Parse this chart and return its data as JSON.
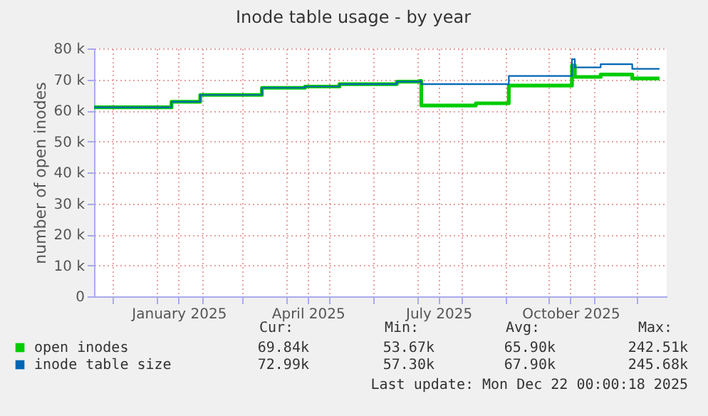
{
  "chart_data": {
    "type": "step",
    "title": "Inode table usage - by year",
    "ylabel": "number of open inodes",
    "xlim": [
      "2024-11-18",
      "2025-12-22"
    ],
    "xticks": [
      {
        "value": "2024-12-01",
        "label": null
      },
      {
        "value": "2025-01-01",
        "label": null
      },
      {
        "value": "2025-01-16",
        "label": "January 2025"
      },
      {
        "value": "2025-02-01",
        "label": null
      },
      {
        "value": "2025-03-01",
        "label": null
      },
      {
        "value": "2025-04-01",
        "label": null
      },
      {
        "value": "2025-04-16",
        "label": "April 2025"
      },
      {
        "value": "2025-05-01",
        "label": null
      },
      {
        "value": "2025-06-01",
        "label": null
      },
      {
        "value": "2025-07-01",
        "label": null
      },
      {
        "value": "2025-07-16",
        "label": "July 2025"
      },
      {
        "value": "2025-08-01",
        "label": null
      },
      {
        "value": "2025-09-01",
        "label": null
      },
      {
        "value": "2025-10-01",
        "label": null
      },
      {
        "value": "2025-10-16",
        "label": "October 2025"
      },
      {
        "value": "2025-11-01",
        "label": null
      },
      {
        "value": "2025-12-01",
        "label": null
      }
    ],
    "ylim": [
      0,
      80000
    ],
    "yticks": [
      0,
      {
        "value": 10000,
        "label": "10 k"
      },
      {
        "value": 20000,
        "label": "20 k"
      },
      {
        "value": 30000,
        "label": "30 k"
      },
      {
        "value": 40000,
        "label": "40 k"
      },
      {
        "value": 50000,
        "label": "50 k"
      },
      {
        "value": 60000,
        "label": "60 k"
      },
      {
        "value": 70000,
        "label": "70 k"
      },
      {
        "value": 80000,
        "label": "80 k"
      }
    ],
    "grid": true,
    "legend": "bottom left",
    "series": [
      {
        "name": "open inodes",
        "color": "#00cc00",
        "x": [
          "2024-11-18",
          "2025-01-11",
          "2025-01-31",
          "2025-03-15",
          "2025-04-14",
          "2025-05-08",
          "2025-06-17",
          "2025-07-03",
          "2025-07-04",
          "2025-08-11",
          "2025-09-03",
          "2025-10-17",
          "2025-10-19",
          "2025-11-06",
          "2025-11-28",
          "2025-12-17"
        ],
        "values": [
          61000,
          62800,
          65000,
          67300,
          67700,
          68500,
          69300,
          69500,
          61600,
          62300,
          68000,
          74500,
          70800,
          71600,
          70300,
          70300
        ]
      },
      {
        "name": "inode table size",
        "color": "#0066b3",
        "x": [
          "2024-11-18",
          "2025-01-11",
          "2025-01-31",
          "2025-03-15",
          "2025-04-14",
          "2025-05-08",
          "2025-06-17",
          "2025-07-03",
          "2025-07-04",
          "2025-09-03",
          "2025-10-17",
          "2025-10-19",
          "2025-11-06",
          "2025-11-28",
          "2025-12-17"
        ],
        "values": [
          61000,
          62800,
          65000,
          67300,
          67700,
          68500,
          69300,
          69500,
          68500,
          71100,
          76500,
          73900,
          74900,
          73400,
          73400
        ]
      }
    ],
    "annotations": [
      "Cur:",
      "Min:",
      "Avg:",
      "Max:",
      "69.84k",
      "53.67k",
      "65.90k",
      "242.51k",
      "72.99k",
      "57.30k",
      "67.90k",
      "245.68k",
      "Last update: Mon Dec 22 00:00:18 2025"
    ]
  }
}
